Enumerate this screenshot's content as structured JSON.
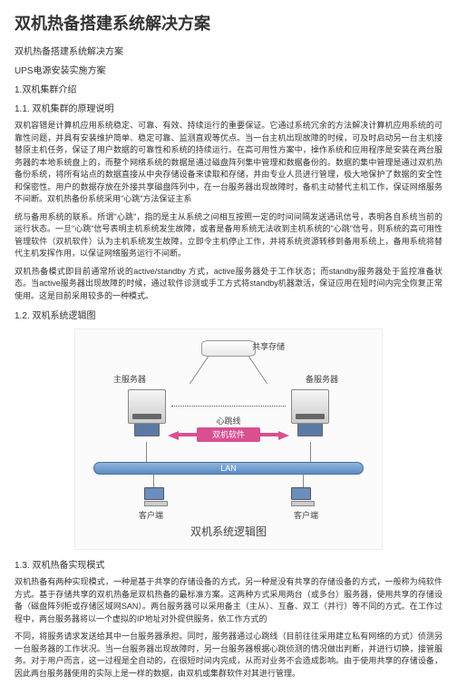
{
  "title": "双机热备搭建系统解决方案",
  "sub1": "双机热备搭建系统解决方案",
  "sub2": "UPS电源安装实施方案",
  "sec1": "1.双机集群介绍",
  "sec1_1": "1.1. 双机集群的原理说明",
  "p1": "双机容错是计算机应用系统稳定、可靠、有效、持续运行的重要保证。它通过系统冗余的方法解决计算机应用系统的可靠性问题，并具有安装维护简单、稳定可靠、监测直观等优点。当一台主机出现故障的时候，可及时启动另一台主机接替原主机任务，保证了用户数据的可靠性和系统的持续运行。在高可用性方案中，操作系统和应用程序是安装在两台服务器的本地系统盘上的，而整个网络系统的数据是通过磁盘阵列集中管理和数据备份的。数据的集中管理是通过双机热备份系统，将所有站点的数据直接从中央存储设备来读取和存储，并由专业人员进行管理，极大地保护了数据的安全性和保密性。用户的数据存放在外接共享磁盘阵列中，在一台服务器出现故障时，备机主动替代主机工作，保证网络服务不间断。双机热备份系统采用\"心跳\"方法保证主系",
  "p2": "统与备用系统的联系。所谓\"心跳\"，指的是主从系统之间相互按照一定的时间间隔发送通讯信号，表明各自系统当前的运行状态。一旦\"心跳\"信号表明主机系统发生故障，或者是备用系统无法收到主机系统的\"心跳\"信号，则系统的高可用性管理软件（双机软件）认为主机系统发生故障，立即令主机停止工作，并将系统资源转移到备用系统上，备用系统将替代主机发挥作用，以保证网络服务运行不间断。",
  "p3": "双机热备模式即目前通常所说的active/standby 方式，active服务器处于工作状态；而standby服务器处于监控准备状态。当active服务器出现故障的时候，通过软件诊测或手工方式将standby机器激活，保证应用在短时间内完全恢复正常使用。这是目前采用较多的一种模式。",
  "sec1_2": "1.2. 双机系统逻辑图",
  "diagram": {
    "storage_label": "共享存储",
    "server_left": "主服务器",
    "server_right": "备服务器",
    "heartbeat": "心跳线",
    "software": "双机软件",
    "lan": "LAN",
    "client": "客户端",
    "diagram_title": "双机系统逻辑图"
  },
  "sec1_3": "1.3. 双机热备实现模式",
  "p4": "双机热备有两种实现模式，一种是基于共享的存储设备的方式，另一种是没有共享的存储设备的方式，一般称为纯软件方式。基于存储共享的双机热备是双机热备的最标准方案。这两种方式采用两台（或多台）服务器，使用共享的存储设备（磁盘阵列柜或存储区域网SAN）。两台服务器可以采用备主（主从）、互备、双工（并行）等不同的方式。在工作过程中，两台服务器将以一个虚拟的IP地址对外提供服务，依工作方式的",
  "p5": "不同，将服务请求发送给其中一台服务器承担。同时，服务器通过心跳线（目前往往采用建立私有网络的方式）侦测另一台服务器的工作状况。当一台服务器出现故障时，另一台服务器根据心跳侦测的情况做出判断，并进行切换，接管服务。对于用户而言，这一过程是全自动的，在很短时间内完成，从而对业务不会造成影响。由于使用共享的存储设备，因此两台服务器使用的实际上是一样的数据，由双机或集群软件对其进行管理。"
}
